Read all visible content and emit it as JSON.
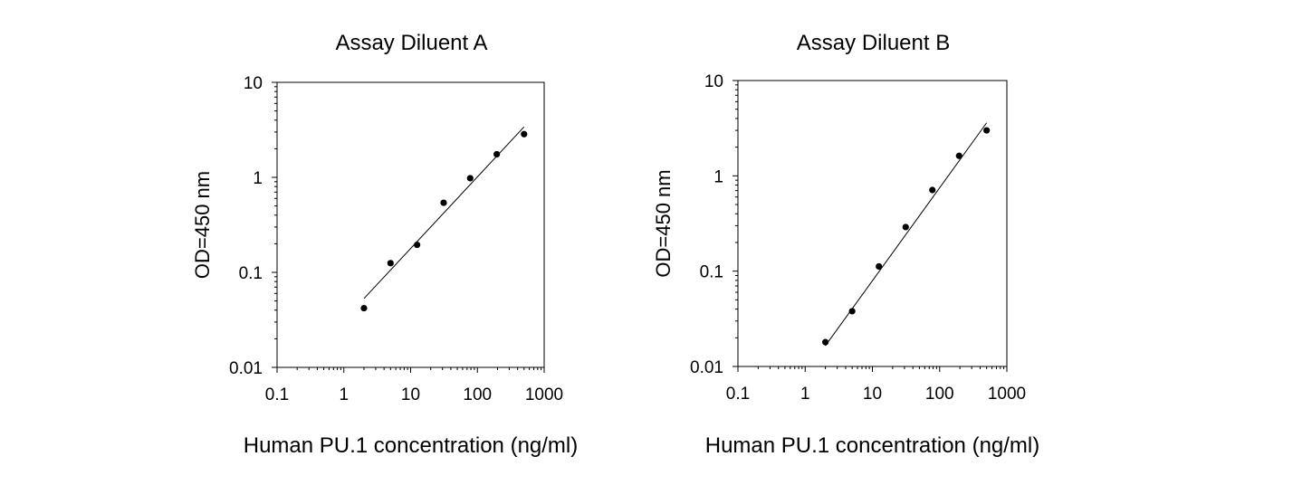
{
  "chart_data": [
    {
      "type": "scatter",
      "title": "Assay Diluent A",
      "xlabel": "Human PU.1 concentration (ng/ml)",
      "ylabel": "OD=450 nm",
      "xscale": "log",
      "yscale": "log",
      "xlim": [
        0.1,
        1000
      ],
      "ylim": [
        0.01,
        10
      ],
      "x_ticks": [
        "0.1",
        "1",
        "10",
        "100",
        "1000"
      ],
      "y_ticks": [
        "0.01",
        "0.1",
        "1",
        "10"
      ],
      "grid": false,
      "points": [
        {
          "x": 2,
          "y": 0.042
        },
        {
          "x": 5,
          "y": 0.125
        },
        {
          "x": 12.5,
          "y": 0.195
        },
        {
          "x": 31.25,
          "y": 0.54
        },
        {
          "x": 78,
          "y": 0.98
        },
        {
          "x": 195,
          "y": 1.75
        },
        {
          "x": 500,
          "y": 2.85
        }
      ],
      "fit_line": [
        {
          "x": 2,
          "y": 0.053
        },
        {
          "x": 500,
          "y": 3.4
        }
      ]
    },
    {
      "type": "scatter",
      "title": "Assay Diluent B",
      "xlabel": "Human PU.1 concentration (ng/ml)",
      "ylabel": "OD=450 nm",
      "xscale": "log",
      "yscale": "log",
      "xlim": [
        0.1,
        1000
      ],
      "ylim": [
        0.01,
        10
      ],
      "x_ticks": [
        "0.1",
        "1",
        "10",
        "100",
        "1000"
      ],
      "y_ticks": [
        "0.01",
        "0.1",
        "1",
        "10"
      ],
      "grid": false,
      "points": [
        {
          "x": 2,
          "y": 0.018
        },
        {
          "x": 5,
          "y": 0.038
        },
        {
          "x": 12.5,
          "y": 0.112
        },
        {
          "x": 31.25,
          "y": 0.29
        },
        {
          "x": 78,
          "y": 0.71
        },
        {
          "x": 195,
          "y": 1.62
        },
        {
          "x": 500,
          "y": 3.0
        }
      ],
      "fit_line": [
        {
          "x": 2,
          "y": 0.0165
        },
        {
          "x": 500,
          "y": 3.6
        }
      ]
    }
  ]
}
